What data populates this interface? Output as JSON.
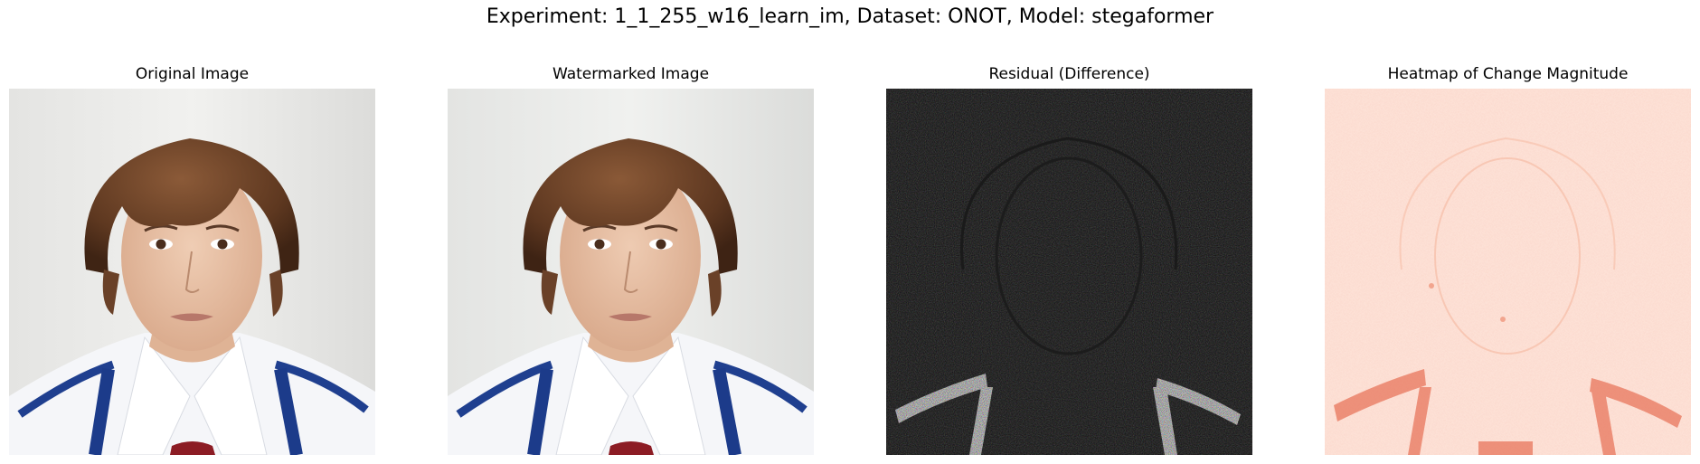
{
  "figure": {
    "title": "Experiment: 1_1_255_w16_learn_im, Dataset: ONOT, Model: stegaformer"
  },
  "panels": [
    {
      "title": "Original Image",
      "content": "portrait-photo"
    },
    {
      "title": "Watermarked Image",
      "content": "portrait-photo"
    },
    {
      "title": "Residual (Difference)",
      "content": "residual-map"
    },
    {
      "title": "Heatmap of Change Magnitude",
      "content": "heatmap"
    }
  ],
  "colors": {
    "background_wall": "#eeeeec",
    "hair": "#6a4128",
    "skin": "#e7c2a8",
    "shirt": "#f6f7fa",
    "stripe": "#1f3f8f",
    "tie": "#8c1c24",
    "residual_bg": "#0c0c0c",
    "heatmap_bg": "#fde1d6",
    "heatmap_hot": "#c81d1d"
  }
}
